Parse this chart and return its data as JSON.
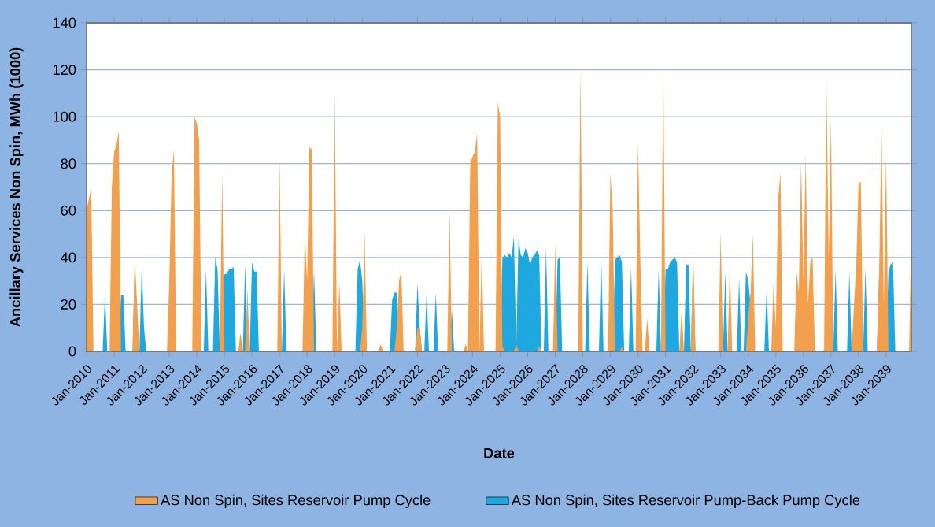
{
  "chart_data": {
    "type": "area",
    "xlabel": "Date",
    "ylabel": "Ancillary Services Non Spin, MWh (1000)",
    "xlim": [
      "2010-01",
      "2039-12"
    ],
    "ylim": [
      0,
      140
    ],
    "yticks": [
      0,
      20,
      40,
      60,
      80,
      100,
      120,
      140
    ],
    "xticks": [
      {
        "value": "2010-01",
        "label": "Jan-2010"
      },
      {
        "value": "2011-01",
        "label": "Jan-2011"
      },
      {
        "value": "2012-01",
        "label": "Jan-2012"
      },
      {
        "value": "2013-01",
        "label": "Jan-2013"
      },
      {
        "value": "2014-01",
        "label": "Jan-2014"
      },
      {
        "value": "2015-01",
        "label": "Jan-2015"
      },
      {
        "value": "2016-01",
        "label": "Jan-2016"
      },
      {
        "value": "2017-01",
        "label": "Jan-2017"
      },
      {
        "value": "2018-01",
        "label": "Jan-2018"
      },
      {
        "value": "2019-01",
        "label": "Jan-2019"
      },
      {
        "value": "2020-01",
        "label": "Jan-2020"
      },
      {
        "value": "2021-01",
        "label": "Jan-2021"
      },
      {
        "value": "2022-01",
        "label": "Jan-2022"
      },
      {
        "value": "2023-01",
        "label": "Jan-2023"
      },
      {
        "value": "2024-01",
        "label": "Jan-2024"
      },
      {
        "value": "2025-01",
        "label": "Jan-2025"
      },
      {
        "value": "2026-01",
        "label": "Jan-2026"
      },
      {
        "value": "2027-01",
        "label": "Jan-2027"
      },
      {
        "value": "2028-01",
        "label": "Jan-2028"
      },
      {
        "value": "2029-01",
        "label": "Jan-2029"
      },
      {
        "value": "2030-01",
        "label": "Jan-2030"
      },
      {
        "value": "2031-01",
        "label": "Jan-2031"
      },
      {
        "value": "2032-01",
        "label": "Jan-2032"
      },
      {
        "value": "2033-01",
        "label": "Jan-2033"
      },
      {
        "value": "2034-01",
        "label": "Jan-2034"
      },
      {
        "value": "2035-01",
        "label": "Jan-2035"
      },
      {
        "value": "2036-01",
        "label": "Jan-2036"
      },
      {
        "value": "2037-01",
        "label": "Jan-2037"
      },
      {
        "value": "2038-01",
        "label": "Jan-2038"
      },
      {
        "value": "2039-01",
        "label": "Jan-2039"
      }
    ],
    "grid": "y",
    "legend": "bottom",
    "series": [
      {
        "name": "AS Non Spin, Sites Reservoir Pump Cycle",
        "color": "#f2a04e",
        "x": [
          "2010-01",
          "2010-03",
          "2010-04",
          "2010-11",
          "2010-12",
          "2011-01",
          "2011-02",
          "2011-03",
          "2011-04",
          "2011-09",
          "2011-10",
          "2011-11",
          "2011-12",
          "2012-12",
          "2013-01",
          "2013-02",
          "2013-03",
          "2013-04",
          "2013-11",
          "2013-12",
          "2014-01",
          "2014-02",
          "2014-03",
          "2014-11",
          "2014-12",
          "2015-01",
          "2015-07",
          "2015-08",
          "2015-09",
          "2015-10",
          "2015-11",
          "2015-12",
          "2016-12",
          "2017-01",
          "2017-02",
          "2017-11",
          "2017-12",
          "2018-01",
          "2018-02",
          "2018-03",
          "2018-04",
          "2018-12",
          "2019-01",
          "2019-02",
          "2019-03",
          "2019-04",
          "2019-12",
          "2020-01",
          "2020-02",
          "2020-03",
          "2020-08",
          "2020-09",
          "2020-10",
          "2021-03",
          "2021-04",
          "2021-05",
          "2021-06",
          "2021-07",
          "2021-12",
          "2022-01",
          "2022-02",
          "2022-03",
          "2023-02",
          "2023-03",
          "2023-04",
          "2023-09",
          "2023-10",
          "2023-11",
          "2023-12",
          "2024-01",
          "2024-02",
          "2024-03",
          "2024-04",
          "2024-05",
          "2024-06",
          "2024-11",
          "2024-12",
          "2025-01",
          "2025-02",
          "2025-03",
          "2025-07",
          "2025-08",
          "2025-09",
          "2026-05",
          "2026-06",
          "2026-07",
          "2026-12",
          "2027-01",
          "2027-02",
          "2027-11",
          "2027-12",
          "2028-01",
          "2028-12",
          "2029-01",
          "2029-02",
          "2029-03",
          "2029-05",
          "2029-06",
          "2029-07",
          "2029-12",
          "2030-01",
          "2030-02",
          "2030-03",
          "2030-04",
          "2030-05",
          "2030-06",
          "2030-11",
          "2030-12",
          "2031-01",
          "2031-07",
          "2031-08",
          "2031-09",
          "2031-12",
          "2032-01",
          "2032-02",
          "2032-12",
          "2033-01",
          "2033-02",
          "2033-04",
          "2033-05",
          "2033-06",
          "2033-12",
          "2034-01",
          "2034-02",
          "2034-03",
          "2034-04",
          "2034-11",
          "2034-12",
          "2035-01",
          "2035-02",
          "2035-03",
          "2035-04",
          "2035-09",
          "2035-10",
          "2035-11",
          "2035-12",
          "2036-01",
          "2036-02",
          "2036-03",
          "2036-04",
          "2036-05",
          "2036-06",
          "2036-10",
          "2036-11",
          "2036-12",
          "2037-01",
          "2037-02",
          "2037-10",
          "2037-11",
          "2037-12",
          "2038-01",
          "2038-02",
          "2038-03",
          "2038-09",
          "2038-10",
          "2038-11",
          "2038-12",
          "2039-01",
          "2039-02",
          "2039-11",
          "2039-12"
        ],
        "values": [
          60,
          70,
          0,
          0,
          70,
          85,
          88,
          94,
          0,
          0,
          40,
          20,
          0,
          0,
          30,
          75,
          86,
          0,
          0,
          100,
          97,
          90,
          0,
          0,
          76,
          0,
          0,
          8,
          0,
          0,
          27,
          0,
          0,
          82,
          0,
          0,
          50,
          30,
          87,
          86,
          0,
          0,
          110,
          0,
          30,
          0,
          0,
          10,
          51,
          0,
          0,
          3,
          0,
          0,
          10,
          30,
          34,
          0,
          0,
          10,
          10,
          0,
          0,
          60,
          0,
          0,
          3,
          0,
          80,
          83,
          85,
          93,
          0,
          42,
          0,
          0,
          106,
          100,
          2,
          0,
          0,
          3,
          0,
          0,
          2,
          0,
          0,
          46,
          0,
          0,
          121,
          0,
          0,
          76,
          60,
          0,
          0,
          2,
          0,
          0,
          89,
          40,
          0,
          0,
          14,
          0,
          0,
          123,
          0,
          0,
          18,
          0,
          0,
          43,
          0,
          0,
          51,
          0,
          0,
          37,
          0,
          0,
          15,
          25,
          50,
          0,
          0,
          29,
          10,
          65,
          76,
          0,
          0,
          34,
          25,
          81,
          30,
          84,
          20,
          38,
          40,
          0,
          0,
          116,
          40,
          100,
          0,
          0,
          20,
          36,
          72,
          72,
          0,
          0,
          35,
          96,
          20,
          84,
          0,
          0,
          52
        ]
      },
      {
        "name": "AS Non Spin, Sites Reservoir Pump-Back Pump Cycle",
        "color": "#1fa7df",
        "x": [
          "2010-01",
          "2010-08",
          "2010-09",
          "2010-10",
          "2011-03",
          "2011-04",
          "2011-05",
          "2011-06",
          "2011-09",
          "2011-10",
          "2011-11",
          "2011-12",
          "2012-01",
          "2012-02",
          "2012-03",
          "2014-04",
          "2014-05",
          "2014-06",
          "2014-08",
          "2014-09",
          "2014-10",
          "2014-11",
          "2014-12",
          "2015-01",
          "2015-02",
          "2015-03",
          "2015-04",
          "2015-05",
          "2015-06",
          "2015-09",
          "2015-10",
          "2015-11",
          "2015-12",
          "2016-01",
          "2016-02",
          "2016-03",
          "2016-04",
          "2017-02",
          "2017-03",
          "2017-04",
          "2018-03",
          "2018-04",
          "2018-05",
          "2019-10",
          "2019-11",
          "2019-12",
          "2020-01",
          "2020-02",
          "2021-01",
          "2021-02",
          "2021-03",
          "2021-04",
          "2021-05",
          "2021-12",
          "2022-01",
          "2022-02",
          "2022-03",
          "2022-04",
          "2022-05",
          "2022-06",
          "2022-08",
          "2022-09",
          "2022-10",
          "2023-03",
          "2023-04",
          "2023-05",
          "2025-01",
          "2025-02",
          "2025-03",
          "2025-04",
          "2025-05",
          "2025-06",
          "2025-07",
          "2025-08",
          "2025-09",
          "2025-10",
          "2025-11",
          "2025-12",
          "2026-01",
          "2026-02",
          "2026-03",
          "2026-04",
          "2026-05",
          "2026-06",
          "2026-07",
          "2026-08",
          "2026-09",
          "2026-10",
          "2027-01",
          "2027-02",
          "2027-03",
          "2027-04",
          "2028-02",
          "2028-03",
          "2028-04",
          "2028-08",
          "2028-09",
          "2028-10",
          "2029-02",
          "2029-03",
          "2029-04",
          "2029-05",
          "2029-06",
          "2029-07",
          "2029-09",
          "2029-10",
          "2029-11",
          "2030-09",
          "2030-10",
          "2030-11",
          "2030-12",
          "2031-01",
          "2031-02",
          "2031-03",
          "2031-04",
          "2031-05",
          "2031-06",
          "2031-07",
          "2031-09",
          "2031-10",
          "2031-11",
          "2031-12",
          "2032-01",
          "2032-02",
          "2033-02",
          "2033-03",
          "2033-04",
          "2033-08",
          "2033-09",
          "2033-10",
          "2033-11",
          "2033-12",
          "2034-01",
          "2034-02",
          "2034-03",
          "2034-08",
          "2034-09",
          "2034-10",
          "2037-02",
          "2037-03",
          "2037-04",
          "2037-08",
          "2037-09",
          "2037-10",
          "2038-03",
          "2038-04",
          "2038-05",
          "2038-09",
          "2038-10",
          "2038-11",
          "2039-01",
          "2039-02",
          "2039-03",
          "2039-04",
          "2039-05",
          "2039-12"
        ],
        "values": [
          0,
          0,
          25,
          0,
          0,
          24,
          24,
          0,
          0,
          38,
          10,
          0,
          36,
          10,
          0,
          0,
          35,
          0,
          0,
          40,
          35,
          0,
          0,
          33,
          33,
          35,
          35,
          36,
          0,
          0,
          37,
          0,
          0,
          38,
          34,
          34,
          0,
          0,
          35,
          0,
          0,
          35,
          0,
          0,
          35,
          39,
          30,
          0,
          0,
          22,
          25,
          25,
          0,
          0,
          29,
          10,
          0,
          0,
          25,
          0,
          0,
          25,
          0,
          0,
          18,
          0,
          0,
          40,
          41,
          40,
          42,
          40,
          49,
          2,
          48,
          41,
          40,
          44,
          42,
          37,
          40,
          41,
          43,
          41,
          0,
          0,
          44,
          0,
          0,
          39,
          40,
          0,
          0,
          38,
          0,
          0,
          40,
          0,
          0,
          39,
          40,
          41,
          38,
          0,
          0,
          36,
          0,
          0,
          35,
          0,
          0,
          35,
          35,
          38,
          39,
          40,
          38,
          0,
          0,
          37,
          37,
          0,
          38,
          0,
          0,
          34,
          0,
          0,
          31,
          0,
          0,
          34,
          30,
          20,
          0,
          0,
          27,
          0,
          0,
          35,
          0,
          0,
          34,
          0,
          0,
          35,
          0,
          0,
          33,
          0,
          0,
          34,
          37,
          38,
          0,
          0
        ]
      }
    ]
  }
}
